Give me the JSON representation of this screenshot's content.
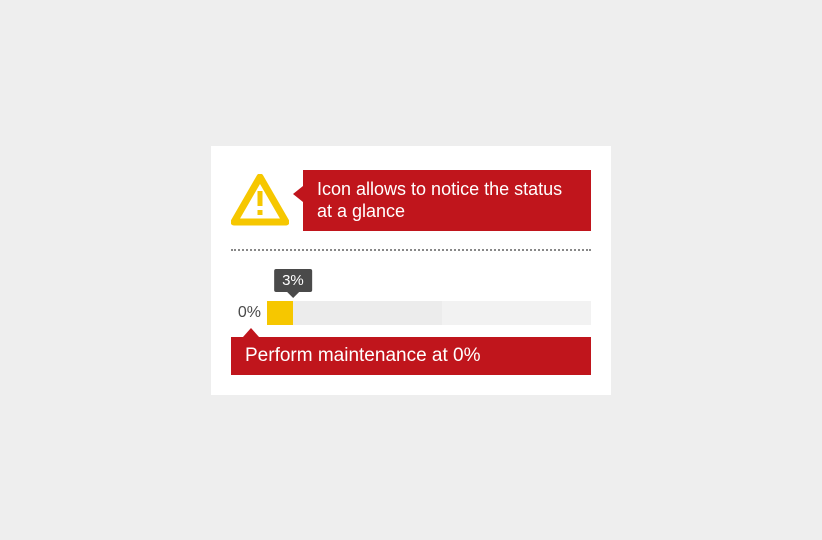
{
  "colors": {
    "page_bg": "#eeeeee",
    "card_bg": "#ffffff",
    "callout_bg": "#c0151c",
    "callout_text": "#ffffff",
    "warning_stroke": "#f6c700",
    "warning_fill": "#ffffff",
    "divider": "#888888",
    "tooltip_bg": "#4a4a4a",
    "zero_label": "#4a4a4a",
    "bar_fill": "#f6c700",
    "bar_track_light": "#ececec",
    "bar_track_lighter": "#f2f2f2"
  },
  "callout_top": {
    "text": "Icon allows to notice the status at a glance"
  },
  "progress": {
    "zero_label": "0%",
    "tooltip_value": "3%",
    "fill_percent": 8,
    "fill_color": "#f6c700",
    "track_segments": [
      {
        "width_pct": 46,
        "color": "#ececec"
      },
      {
        "width_pct": 46,
        "color": "#f2f2f2"
      }
    ]
  },
  "callout_bottom": {
    "text": "Perform maintenance at 0%"
  }
}
